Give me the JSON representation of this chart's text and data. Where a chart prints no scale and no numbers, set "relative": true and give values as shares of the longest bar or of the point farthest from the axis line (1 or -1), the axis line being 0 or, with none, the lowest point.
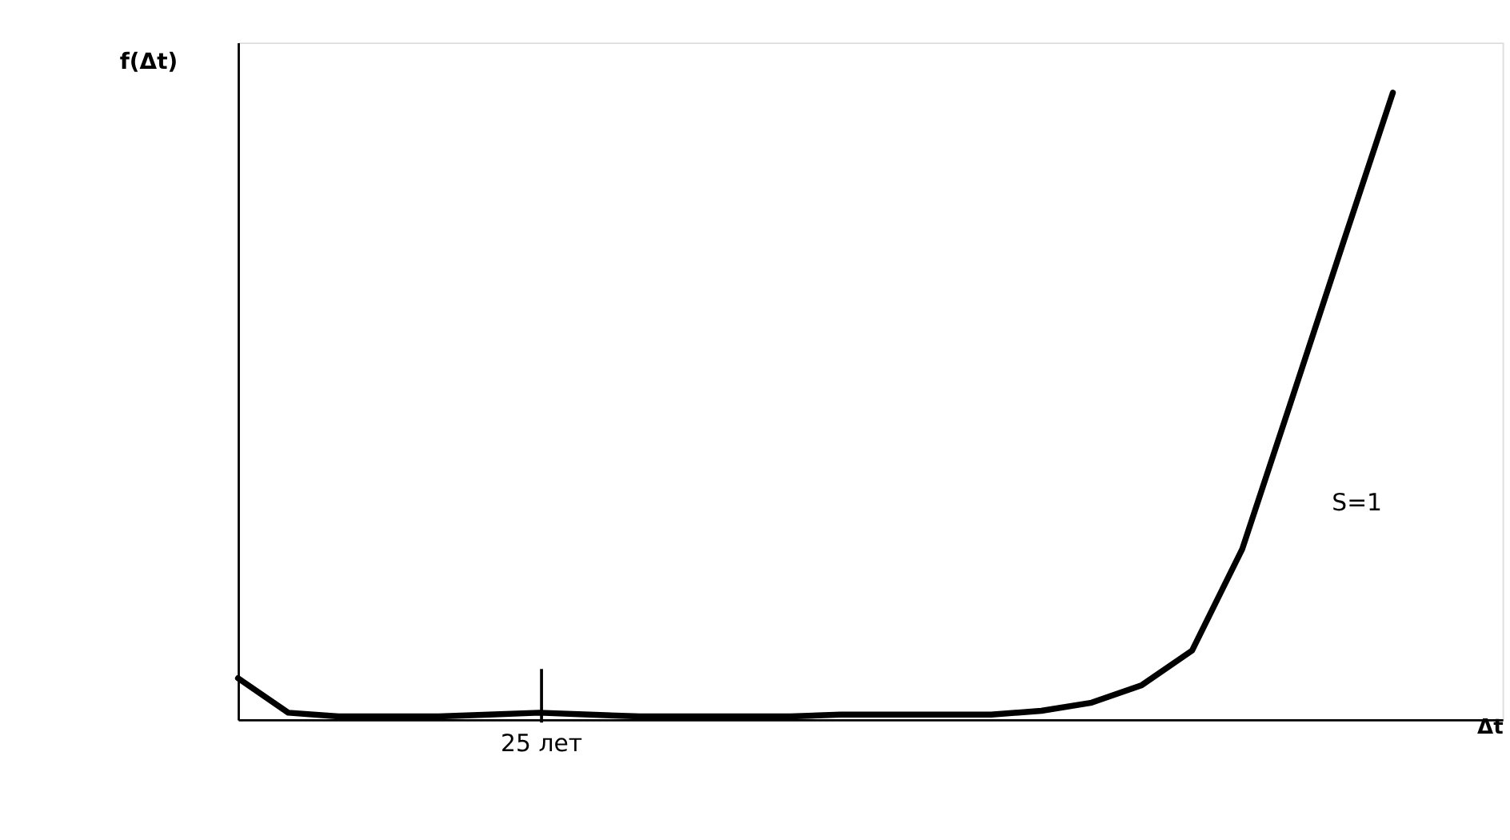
{
  "chart_data": {
    "type": "line",
    "relative": true,
    "xlabel": "Δt",
    "ylabel": "f(Δt)",
    "categories": [
      null,
      null,
      null,
      null,
      null,
      null,
      null,
      null,
      null,
      null,
      null,
      null,
      null,
      null,
      null,
      null,
      null,
      null,
      null,
      null,
      null,
      null,
      null,
      null
    ],
    "series": [
      {
        "color": "#000000",
        "values": [
          0.066,
          0.011,
          0.005,
          0.005,
          0.005,
          0.008,
          0.011,
          0.008,
          0.005,
          0.005,
          0.005,
          0.005,
          0.008,
          0.008,
          0.008,
          0.008,
          0.014,
          0.027,
          0.055,
          0.11,
          0.272,
          0.514,
          0.758,
          1
        ]
      }
    ],
    "annotations": [
      "S=1",
      "25 лет"
    ],
    "grid": false,
    "legend": false,
    "marker": "none",
    "line_style": "solid"
  }
}
